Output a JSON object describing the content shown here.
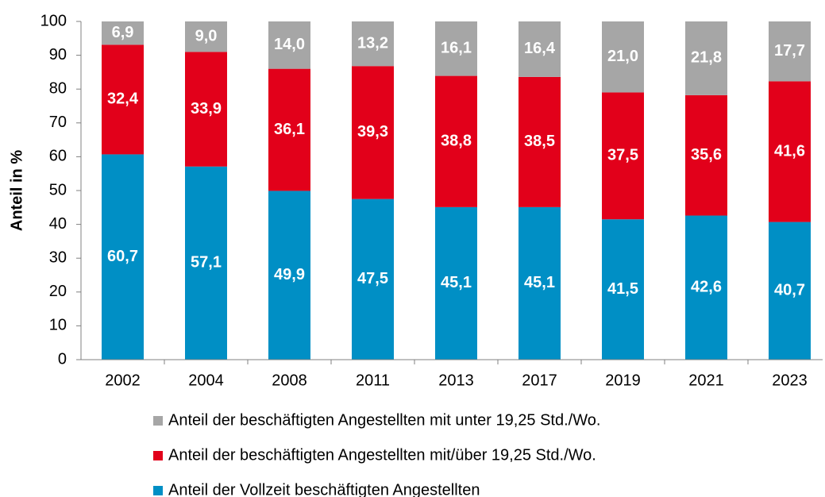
{
  "chart_data": {
    "type": "stacked_bar",
    "y_label": "Anteil in %",
    "categories": [
      "2002",
      "2004",
      "2008",
      "2011",
      "2013",
      "2017",
      "2019",
      "2021",
      "2023"
    ],
    "series": [
      {
        "name": "Anteil der Vollzeit beschäftigten Angestellten",
        "color": "#008fc5",
        "values": [
          60.7,
          57.1,
          49.9,
          47.5,
          45.1,
          45.1,
          41.5,
          42.6,
          40.7
        ],
        "value_labels": [
          "60,7",
          "57,1",
          "49,9",
          "47,5",
          "45,1",
          "45,1",
          "41,5",
          "42,6",
          "40,7"
        ]
      },
      {
        "name": "Anteil der beschäftigten Angestellten mit/über 19,25 Std./Wo.",
        "color": "#e2001a",
        "values": [
          32.4,
          33.9,
          36.1,
          39.3,
          38.8,
          38.5,
          37.5,
          35.6,
          41.6
        ],
        "value_labels": [
          "32,4",
          "33,9",
          "36,1",
          "39,3",
          "38,8",
          "38,5",
          "37,5",
          "35,6",
          "41,6"
        ]
      },
      {
        "name": "Anteil der beschäftigten Angestellten mit unter 19,25 Std./Wo.",
        "color": "#a6a6a6",
        "values": [
          6.9,
          9.0,
          14.0,
          13.2,
          16.1,
          16.4,
          21.0,
          21.8,
          17.7
        ],
        "value_labels": [
          "6,9",
          "9,0",
          "14,0",
          "13,2",
          "16,1",
          "16,4",
          "21,0",
          "21,8",
          "17,7"
        ]
      }
    ],
    "ylim": [
      0,
      100
    ],
    "yticks": [
      0,
      10,
      20,
      30,
      40,
      50,
      60,
      70,
      80,
      90,
      100
    ],
    "grid": false
  }
}
